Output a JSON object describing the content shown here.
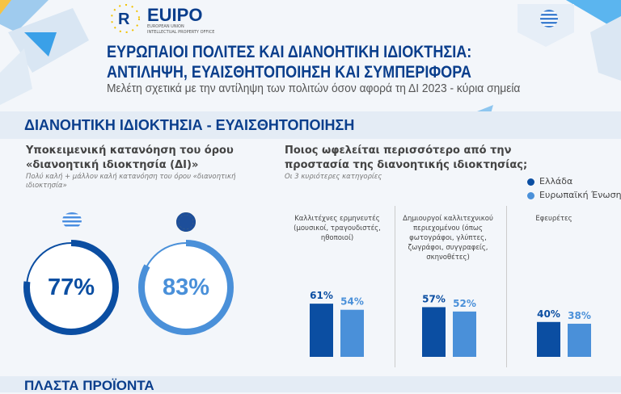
{
  "header": {
    "logo_text": "EUIPO",
    "logo_sub1": "EUROPEAN UNION",
    "logo_sub2": "INTELLECTUAL PROPERTY OFFICE",
    "flag": "greece-flag-icon",
    "title_line1": "ΕΥΡΩΠΑΙΟΙ ΠΟΛΙΤΕΣ ΚΑΙ ΔΙΑΝΟΗΤΙΚΗ ΙΔΙΟΚΤΗΣΙΑ:",
    "title_line2": "ΑΝΤΙΛΗΨΗ, ΕΥΑΙΣΘΗΤΟΠΟΙΗΣΗ ΚΑΙ ΣΥΜΠΕΡΙΦΟΡΑ",
    "subtitle": "Μελέτη σχετικά με την αντίληψη των πολιτών όσον αφορά τη ΔΙ 2023 - κύρια σημεία"
  },
  "section": {
    "title": "ΔΙΑΝΟΗΤΙΚΗ ΙΔΙΟΚΤΗΣΙΑ - ΕΥΑΙΣΘΗΤΟΠΟΙΗΣΗ",
    "next_title": "ΠΛΑΣΤΑ ΠΡΟΪΟΝΤΑ"
  },
  "left": {
    "title_line1": "Υποκειμενική κατανόηση του όρου",
    "title_line2": "«διανοητική ιδιοκτησία (ΔΙ)»",
    "note": "Πολύ καλή + μάλλον καλή κατανόηση του όρου «διανοητική ιδιοκτησία»",
    "rings": [
      {
        "label": "77%",
        "value": 77,
        "color": "#0b4ea2"
      },
      {
        "label": "83%",
        "value": 83,
        "color": "#4a90d9"
      }
    ]
  },
  "right": {
    "title_line1": "Ποιος ωφελείται περισσότερο από την",
    "title_line2": "προστασία της διανοητικής ιδιοκτησίας;",
    "note": "Οι 3 κυριότερες κατηγορίες"
  },
  "chart_data": {
    "type": "bar",
    "categories": [
      "Καλλιτέχνες ερμηνευτές (μουσικοί, τραγουδιστές, ηθοποιοί)",
      "Δημιουργοί καλλιτεχνικού περιεχομένου (όπως φωτογράφοι, γλύπτες, ζωγράφοι, συγγραφείς, σκηνοθέτες)",
      "Εφευρέτες"
    ],
    "series": [
      {
        "name": "Ελλάδα",
        "values": [
          61,
          57,
          40
        ],
        "labels": [
          "61%",
          "57%",
          "40%"
        ],
        "color": "#0b4ea2"
      },
      {
        "name": "Ευρωπαϊκή Ένωση",
        "values": [
          54,
          52,
          38
        ],
        "labels": [
          "54%",
          "52%",
          "38%"
        ],
        "color": "#4a90d9"
      }
    ],
    "ylim": [
      0,
      100
    ]
  }
}
